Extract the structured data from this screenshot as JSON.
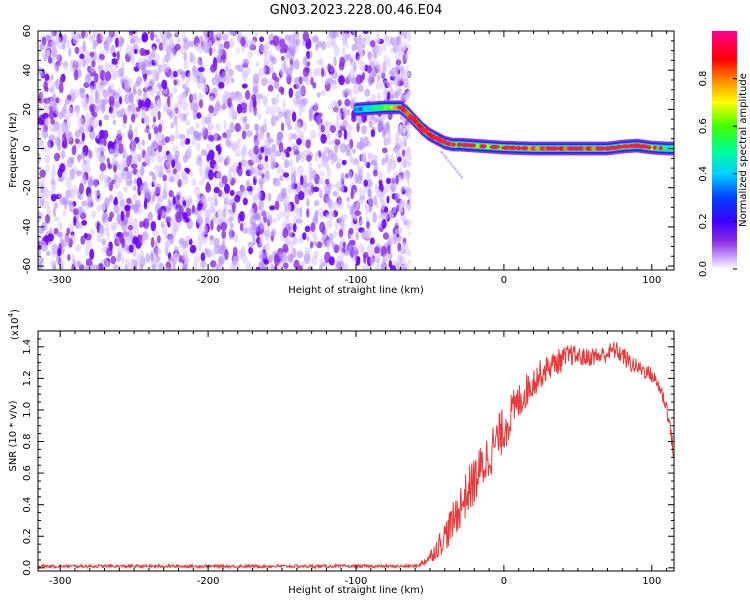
{
  "title": "GN03.2023.228.00.46.E04",
  "chart_data": [
    {
      "type": "heatmap",
      "xlabel": "Height of straight line (km)",
      "ylabel": "Frequency (Hz)",
      "xlim": [
        -315,
        115
      ],
      "ylim": [
        -62,
        60
      ],
      "x_ticks": [
        -300,
        -200,
        -100,
        0,
        100
      ],
      "x_tick_labels": [
        "-300",
        "-200",
        "-100",
        "0",
        "100"
      ],
      "y_ticks": [
        -60,
        -40,
        -20,
        0,
        20,
        40,
        60
      ],
      "y_tick_labels": [
        "-60",
        "-40",
        "-20",
        "0",
        "20",
        "40",
        "60"
      ],
      "noise_region_x": [
        -315,
        -68
      ],
      "ridge": {
        "x": [
          -100,
          -90,
          -80,
          -70,
          -65,
          -60,
          -55,
          -50,
          -45,
          -40,
          -35,
          -30,
          -20,
          -10,
          0,
          20,
          50,
          70,
          80,
          90,
          100,
          110,
          115
        ],
        "freq_hz": [
          20,
          20.5,
          21,
          21,
          18,
          14,
          10,
          7,
          5,
          3,
          2,
          2,
          1.5,
          1,
          0.5,
          0,
          0,
          0,
          1,
          1.5,
          0.5,
          0,
          0
        ],
        "amplitude": [
          0.3,
          0.45,
          0.6,
          0.8,
          0.85,
          0.9,
          0.9,
          0.88,
          0.88,
          0.85,
          0.8,
          0.55,
          0.6,
          0.65,
          0.7,
          0.8,
          0.85,
          0.8,
          0.7,
          0.85,
          0.7,
          0.5,
          0.45
        ]
      },
      "colorbar": {
        "label": "Normalized spectral amplitude",
        "range": [
          0,
          1
        ],
        "ticks": [
          0.0,
          0.2,
          0.4,
          0.6,
          0.8
        ],
        "tick_labels": [
          "0.0",
          "0.2",
          "0.4",
          "0.6",
          "0.8"
        ]
      }
    },
    {
      "type": "line",
      "xlabel": "Height of straight line (km)",
      "ylabel": "SNR (10 * v/v)",
      "y_multiplier_label": "(x10",
      "y_multiplier_exp": "4",
      "xlim": [
        -315,
        115
      ],
      "ylim": [
        -0.02,
        1.5
      ],
      "x_ticks": [
        -300,
        -200,
        -100,
        0,
        100
      ],
      "x_tick_labels": [
        "-300",
        "-200",
        "-100",
        "0",
        "100"
      ],
      "y_ticks": [
        0.0,
        0.2,
        0.4,
        0.6,
        0.8,
        1.0,
        1.2,
        1.4
      ],
      "y_tick_labels": [
        "0.0",
        "0.2",
        "0.4",
        "0.6",
        "0.8",
        "1.0",
        "1.2",
        "1.4"
      ],
      "color": "#e83a3a",
      "series": [
        {
          "name": "SNR",
          "x": [
            -315,
            -250,
            -200,
            -150,
            -100,
            -70,
            -60,
            -55,
            -50,
            -45,
            -40,
            -35,
            -30,
            -25,
            -20,
            -15,
            -10,
            -5,
            0,
            5,
            10,
            15,
            20,
            25,
            30,
            35,
            40,
            45,
            50,
            55,
            60,
            65,
            70,
            75,
            80,
            85,
            90,
            95,
            100,
            105,
            110,
            113,
            115
          ],
          "y": [
            0.01,
            0.01,
            0.01,
            0.01,
            0.01,
            0.01,
            0.01,
            0.03,
            0.07,
            0.13,
            0.2,
            0.28,
            0.38,
            0.47,
            0.55,
            0.63,
            0.72,
            0.8,
            0.88,
            0.97,
            1.05,
            1.12,
            1.18,
            1.23,
            1.27,
            1.3,
            1.32,
            1.35,
            1.34,
            1.33,
            1.34,
            1.34,
            1.36,
            1.38,
            1.35,
            1.3,
            1.27,
            1.25,
            1.22,
            1.15,
            1.02,
            0.85,
            0.7
          ],
          "noise_amplitude": [
            0.01,
            0.01,
            0.01,
            0.01,
            0.01,
            0.01,
            0.01,
            0.02,
            0.04,
            0.07,
            0.1,
            0.12,
            0.14,
            0.15,
            0.16,
            0.16,
            0.16,
            0.15,
            0.15,
            0.14,
            0.12,
            0.11,
            0.1,
            0.09,
            0.08,
            0.08,
            0.08,
            0.07,
            0.06,
            0.06,
            0.06,
            0.06,
            0.06,
            0.06,
            0.06,
            0.06,
            0.05,
            0.05,
            0.05,
            0.05,
            0.05,
            0.05,
            0.05
          ]
        }
      ]
    }
  ]
}
